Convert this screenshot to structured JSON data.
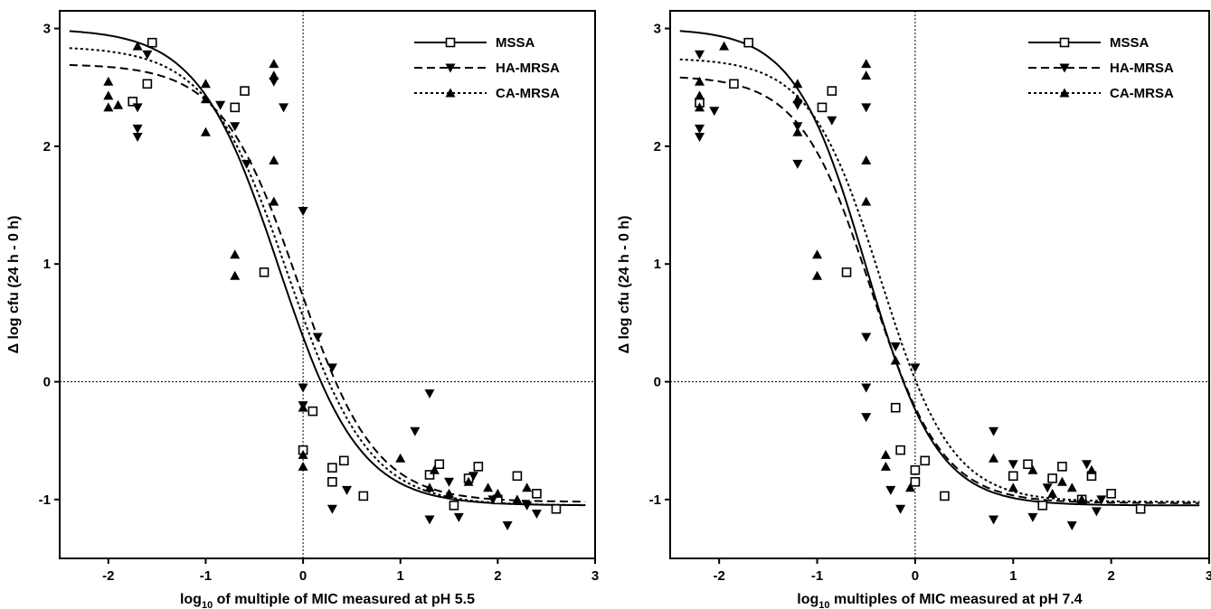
{
  "chart_data": [
    {
      "type": "scatter",
      "xlabel": {
        "prefix": "log",
        "sub": "10",
        "suffix": " of multiple of MIC measured at pH 5.5"
      },
      "ylabel": "Δ log cfu (24 h - 0 h)",
      "xlim": [
        -2.5,
        3
      ],
      "ylim": [
        -1.5,
        3.15
      ],
      "xticks": [
        "-2",
        "-1",
        "0",
        "1",
        "2",
        "3"
      ],
      "yticks": [
        "-1",
        "0",
        "1",
        "2",
        "3"
      ],
      "reference_lines": {
        "x": 0,
        "y": 0,
        "style": "dotted"
      },
      "legend": {
        "placement": "top-right",
        "entries": [
          "MSSA",
          "HA-MRSA",
          "CA-MRSA"
        ]
      },
      "series": [
        {
          "name": "MSSA",
          "marker": "open-square",
          "line": "solid",
          "curve": {
            "top": 3.0,
            "bottom": -1.05,
            "ec50": -0.25,
            "hill": 1.05
          },
          "points": [
            [
              -1.55,
              2.88
            ],
            [
              -1.6,
              2.53
            ],
            [
              -1.75,
              2.38
            ],
            [
              -0.7,
              2.33
            ],
            [
              -0.6,
              2.47
            ],
            [
              -0.4,
              0.93
            ],
            [
              0.0,
              -0.58
            ],
            [
              0.1,
              -0.25
            ],
            [
              0.3,
              -0.73
            ],
            [
              0.3,
              -0.85
            ],
            [
              0.42,
              -0.67
            ],
            [
              0.62,
              -0.97
            ],
            [
              1.3,
              -0.79
            ],
            [
              1.4,
              -0.7
            ],
            [
              1.55,
              -1.05
            ],
            [
              1.7,
              -0.82
            ],
            [
              1.8,
              -0.72
            ],
            [
              2.0,
              -1.0
            ],
            [
              2.2,
              -0.8
            ],
            [
              2.4,
              -0.95
            ],
            [
              2.6,
              -1.08
            ]
          ]
        },
        {
          "name": "HA-MRSA",
          "marker": "filled-triangle-down",
          "line": "dashed",
          "curve": {
            "top": 2.7,
            "bottom": -1.02,
            "ec50": -0.05,
            "hill": 1.1
          },
          "points": [
            [
              -1.6,
              2.78
            ],
            [
              -1.7,
              2.33
            ],
            [
              -1.7,
              2.15
            ],
            [
              -1.7,
              2.08
            ],
            [
              -0.85,
              2.35
            ],
            [
              -0.7,
              2.17
            ],
            [
              -0.58,
              1.85
            ],
            [
              -0.3,
              2.55
            ],
            [
              -0.2,
              2.33
            ],
            [
              0.0,
              1.45
            ],
            [
              0.0,
              -0.05
            ],
            [
              0.0,
              -0.2
            ],
            [
              0.15,
              0.38
            ],
            [
              0.3,
              0.12
            ],
            [
              0.3,
              -1.08
            ],
            [
              0.45,
              -0.92
            ],
            [
              1.15,
              -0.42
            ],
            [
              1.3,
              -0.1
            ],
            [
              1.3,
              -1.17
            ],
            [
              1.5,
              -0.85
            ],
            [
              1.6,
              -1.15
            ],
            [
              1.75,
              -0.8
            ],
            [
              1.95,
              -1.0
            ],
            [
              2.1,
              -1.22
            ],
            [
              2.3,
              -1.05
            ],
            [
              2.4,
              -1.12
            ]
          ]
        },
        {
          "name": "CA-MRSA",
          "marker": "filled-triangle-up",
          "line": "dotted",
          "curve": {
            "top": 2.85,
            "bottom": -1.05,
            "ec50": -0.15,
            "hill": 1.05
          },
          "points": [
            [
              -2.0,
              2.55
            ],
            [
              -2.0,
              2.43
            ],
            [
              -2.0,
              2.33
            ],
            [
              -1.9,
              2.35
            ],
            [
              -1.7,
              2.85
            ],
            [
              -1.0,
              2.53
            ],
            [
              -1.0,
              2.4
            ],
            [
              -1.0,
              2.12
            ],
            [
              -0.7,
              1.08
            ],
            [
              -0.7,
              0.9
            ],
            [
              -0.3,
              2.7
            ],
            [
              -0.3,
              2.6
            ],
            [
              -0.3,
              1.88
            ],
            [
              -0.3,
              1.53
            ],
            [
              0.0,
              -0.22
            ],
            [
              0.0,
              -0.62
            ],
            [
              0.0,
              -0.72
            ],
            [
              1.0,
              -0.65
            ],
            [
              1.3,
              -0.9
            ],
            [
              1.35,
              -0.75
            ],
            [
              1.5,
              -0.95
            ],
            [
              1.7,
              -0.85
            ],
            [
              1.9,
              -0.9
            ],
            [
              2.0,
              -0.95
            ],
            [
              2.2,
              -1.0
            ],
            [
              2.3,
              -0.9
            ]
          ]
        }
      ]
    },
    {
      "type": "scatter",
      "xlabel": {
        "prefix": "log",
        "sub": "10",
        "suffix": " multiples of MIC measured at pH 7.4"
      },
      "ylabel": "Δ log cfu (24 h - 0 h)",
      "xlim": [
        -2.5,
        3
      ],
      "ylim": [
        -1.5,
        3.15
      ],
      "xticks": [
        "-2",
        "-1",
        "0",
        "1",
        "2",
        "3"
      ],
      "yticks": [
        "-1",
        "0",
        "1",
        "2",
        "3"
      ],
      "reference_lines": {
        "x": 0,
        "y": 0,
        "style": "dotted"
      },
      "legend": {
        "placement": "top-right",
        "entries": [
          "MSSA",
          "HA-MRSA",
          "CA-MRSA"
        ]
      },
      "series": [
        {
          "name": "MSSA",
          "marker": "open-square",
          "line": "solid",
          "curve": {
            "top": 3.0,
            "bottom": -1.05,
            "ec50": -0.5,
            "hill": 1.2
          },
          "points": [
            [
              -2.2,
              2.37
            ],
            [
              -1.85,
              2.53
            ],
            [
              -1.7,
              2.88
            ],
            [
              -0.95,
              2.33
            ],
            [
              -0.85,
              2.47
            ],
            [
              -0.7,
              0.93
            ],
            [
              -0.2,
              -0.22
            ],
            [
              -0.15,
              -0.58
            ],
            [
              0.0,
              -0.85
            ],
            [
              0.0,
              -0.75
            ],
            [
              0.1,
              -0.67
            ],
            [
              0.3,
              -0.97
            ],
            [
              1.0,
              -0.8
            ],
            [
              1.15,
              -0.7
            ],
            [
              1.3,
              -1.05
            ],
            [
              1.4,
              -0.82
            ],
            [
              1.5,
              -0.72
            ],
            [
              1.7,
              -1.0
            ],
            [
              1.8,
              -0.8
            ],
            [
              2.0,
              -0.95
            ],
            [
              2.3,
              -1.08
            ]
          ]
        },
        {
          "name": "HA-MRSA",
          "marker": "filled-triangle-down",
          "line": "dashed",
          "curve": {
            "top": 2.6,
            "bottom": -1.03,
            "ec50": -0.45,
            "hill": 1.2
          },
          "points": [
            [
              -2.2,
              2.78
            ],
            [
              -2.2,
              2.15
            ],
            [
              -2.2,
              2.08
            ],
            [
              -2.05,
              2.3
            ],
            [
              -1.2,
              2.35
            ],
            [
              -1.2,
              2.17
            ],
            [
              -1.2,
              1.85
            ],
            [
              -0.85,
              2.22
            ],
            [
              -0.5,
              2.33
            ],
            [
              -0.5,
              0.38
            ],
            [
              -0.5,
              -0.05
            ],
            [
              -0.5,
              -0.3
            ],
            [
              -0.2,
              0.3
            ],
            [
              -0.15,
              -1.08
            ],
            [
              -0.25,
              -0.92
            ],
            [
              0.0,
              0.12
            ],
            [
              0.8,
              -0.42
            ],
            [
              0.8,
              -1.17
            ],
            [
              1.0,
              -0.7
            ],
            [
              1.2,
              -1.15
            ],
            [
              1.35,
              -0.9
            ],
            [
              1.6,
              -1.22
            ],
            [
              1.75,
              -0.7
            ],
            [
              1.85,
              -1.1
            ],
            [
              1.9,
              -1.0
            ]
          ]
        },
        {
          "name": "CA-MRSA",
          "marker": "filled-triangle-up",
          "line": "dotted",
          "curve": {
            "top": 2.75,
            "bottom": -1.02,
            "ec50": -0.35,
            "hill": 1.2
          },
          "points": [
            [
              -2.2,
              2.55
            ],
            [
              -2.2,
              2.43
            ],
            [
              -2.2,
              2.33
            ],
            [
              -1.95,
              2.85
            ],
            [
              -1.2,
              2.53
            ],
            [
              -1.2,
              2.4
            ],
            [
              -1.2,
              2.12
            ],
            [
              -1.0,
              1.08
            ],
            [
              -1.0,
              0.9
            ],
            [
              -0.5,
              2.7
            ],
            [
              -0.5,
              2.6
            ],
            [
              -0.5,
              1.88
            ],
            [
              -0.5,
              1.53
            ],
            [
              -0.3,
              -0.62
            ],
            [
              -0.3,
              -0.72
            ],
            [
              -0.2,
              0.18
            ],
            [
              -0.05,
              -0.9
            ],
            [
              0.8,
              -0.65
            ],
            [
              1.0,
              -0.9
            ],
            [
              1.2,
              -0.75
            ],
            [
              1.4,
              -0.95
            ],
            [
              1.5,
              -0.85
            ],
            [
              1.6,
              -0.9
            ],
            [
              1.7,
              -1.0
            ],
            [
              1.8,
              -0.75
            ]
          ]
        }
      ]
    }
  ]
}
